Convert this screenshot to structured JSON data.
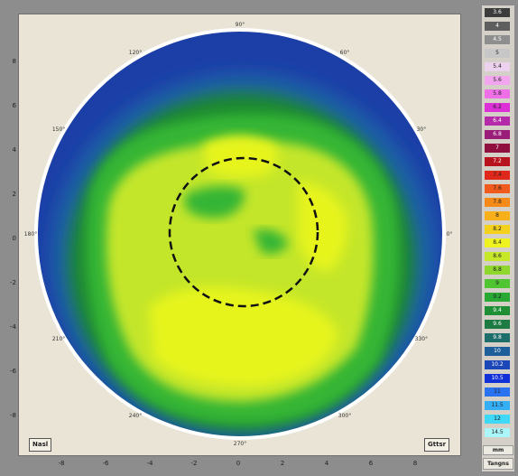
{
  "map": {
    "labels": {
      "nasal": "Nasl",
      "temporal": "Gttsr"
    },
    "angle_labels": [
      "0°",
      "30°",
      "60°",
      "90°",
      "120°",
      "150°",
      "180°",
      "210°",
      "240°",
      "270°",
      "300°",
      "330°"
    ],
    "axis_y_ticks": [
      "8",
      "6",
      "4",
      "2",
      "0",
      "-2",
      "-4",
      "-6",
      "-8"
    ],
    "axis_x_ticks": [
      "-8",
      "-6",
      "-4",
      "-2",
      "0",
      "2",
      "4",
      "6",
      "8"
    ],
    "colors": {
      "outer": "#1c3fa7",
      "mid_blue": "#1f5fa8",
      "dark_green": "#1e8a2f",
      "green": "#34b534",
      "yellow_green": "#c4e62b",
      "yellow": "#e6f41f"
    }
  },
  "scale": {
    "steps": [
      {
        "label": "3.6",
        "color": "#3c3c3c"
      },
      {
        "label": "4",
        "color": "#5e5e5e"
      },
      {
        "label": "4.5",
        "color": "#8e8e8e"
      },
      {
        "label": "5",
        "color": "#c7c7c7"
      },
      {
        "label": "5.4",
        "color": "#ecd2ee"
      },
      {
        "label": "5.6",
        "color": "#f3a6ef"
      },
      {
        "label": "5.8",
        "color": "#ef6fe8"
      },
      {
        "label": "6.2",
        "color": "#dd2fd6"
      },
      {
        "label": "6.4",
        "color": "#b52aa8"
      },
      {
        "label": "6.8",
        "color": "#9a1d7a"
      },
      {
        "label": "7",
        "color": "#8f0f3f"
      },
      {
        "label": "7.2",
        "color": "#b8121e"
      },
      {
        "label": "7.4",
        "color": "#e0271b"
      },
      {
        "label": "7.6",
        "color": "#f05a1c"
      },
      {
        "label": "7.8",
        "color": "#f58a18"
      },
      {
        "label": "8",
        "color": "#f7b019"
      },
      {
        "label": "8.2",
        "color": "#f4d11c"
      },
      {
        "label": "8.4",
        "color": "#eef21f"
      },
      {
        "label": "8.6",
        "color": "#c7e829"
      },
      {
        "label": "8.8",
        "color": "#8fd62d"
      },
      {
        "label": "9",
        "color": "#4fc532"
      },
      {
        "label": "9.2",
        "color": "#27a934"
      },
      {
        "label": "9.4",
        "color": "#1f8f35"
      },
      {
        "label": "9.6",
        "color": "#1c7a42"
      },
      {
        "label": "9.8",
        "color": "#1d6d6a"
      },
      {
        "label": "10",
        "color": "#1e5e9b"
      },
      {
        "label": "10.2",
        "color": "#1c47b8"
      },
      {
        "label": "10.5",
        "color": "#1230d8"
      },
      {
        "label": "11",
        "color": "#2b72f0"
      },
      {
        "label": "11.5",
        "color": "#34aef5"
      },
      {
        "label": "12",
        "color": "#3fd8f6"
      },
      {
        "label": "14.5",
        "color": "#a9f5f7"
      }
    ],
    "unit_mm": "mm",
    "unit_label": "Tangns"
  }
}
